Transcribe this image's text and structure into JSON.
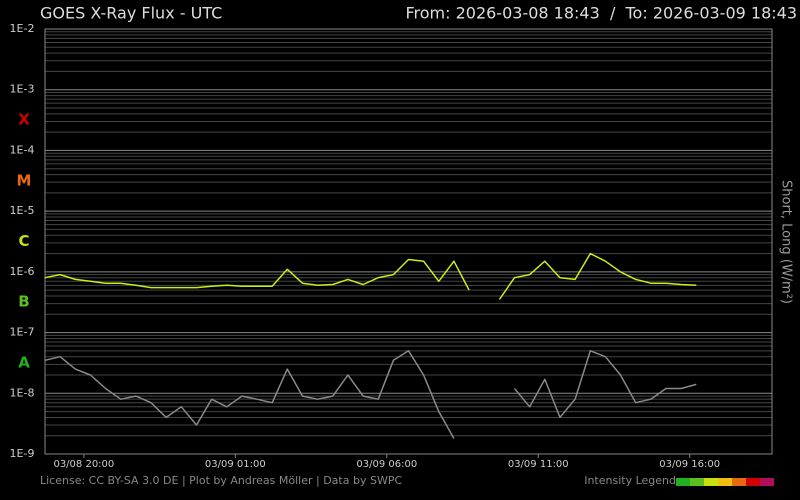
{
  "chart_data": {
    "type": "line",
    "title": "GOES X-Ray Flux - UTC",
    "subtitle": "From: 2026-03-08 18:43  /  To: 2026-03-09 18:43",
    "y_label": "Short, Long (W/m²)",
    "footer": "License: CC BY-SA 3.0 DE | Plot by Andreas Möller | Data by SWPC",
    "legend_label": "Intensity Legend",
    "log_y": true,
    "grid": true,
    "class_labels": [
      {
        "text": "X",
        "color": "#d00000"
      },
      {
        "text": "M",
        "color": "#e86a10"
      },
      {
        "text": "C",
        "color": "#c8e010"
      },
      {
        "text": "B",
        "color": "#5cc020"
      },
      {
        "text": "A",
        "color": "#20b020"
      }
    ],
    "xlim": [
      "03/08 18:43",
      "03/09 18:43"
    ],
    "xticks": [
      "03/08 20:00",
      "03/09 01:00",
      "03/09 06:00",
      "03/09 11:00",
      "03/09 16:00"
    ],
    "ylim": [
      1e-09,
      0.01
    ],
    "yticks": [
      {
        "value": 0.01,
        "label": "1E-2"
      },
      {
        "value": 0.001,
        "label": "1E-3"
      },
      {
        "value": 0.0001,
        "label": "1E-4"
      },
      {
        "value": 1e-05,
        "label": "1E-5"
      },
      {
        "value": 1e-06,
        "label": "1E-6"
      },
      {
        "value": 1e-07,
        "label": "1E-7"
      },
      {
        "value": 1e-08,
        "label": "1E-8"
      },
      {
        "value": 1e-09,
        "label": "1E-9"
      }
    ],
    "x": [
      "03/08 18:43",
      "03/08 19:13",
      "03/08 19:43",
      "03/08 20:13",
      "03/08 20:43",
      "03/08 21:13",
      "03/08 21:43",
      "03/08 22:13",
      "03/08 22:43",
      "03/08 23:13",
      "03/08 23:43",
      "03/09 00:13",
      "03/09 00:43",
      "03/09 01:13",
      "03/09 01:43",
      "03/09 02:13",
      "03/09 02:43",
      "03/09 03:13",
      "03/09 03:43",
      "03/09 04:13",
      "03/09 04:43",
      "03/09 05:13",
      "03/09 05:43",
      "03/09 06:13",
      "03/09 06:43",
      "03/09 07:13",
      "03/09 07:43",
      "03/09 08:13",
      "03/09 08:43",
      "03/09 09:13",
      "03/09 09:43",
      "03/09 10:13",
      "03/09 10:43",
      "03/09 11:13",
      "03/09 11:43",
      "03/09 12:13",
      "03/09 12:43",
      "03/09 13:13",
      "03/09 13:43",
      "03/09 14:13",
      "03/09 14:43",
      "03/09 15:13",
      "03/09 15:43",
      "03/09 16:13"
    ],
    "series": [
      {
        "color": "#c4f01c",
        "values": [
          8e-07,
          9e-07,
          7.5e-07,
          7e-07,
          6.5e-07,
          6.5e-07,
          6e-07,
          5.5e-07,
          5.5e-07,
          5.5e-07,
          5.5e-07,
          5.8e-07,
          6e-07,
          5.8e-07,
          5.8e-07,
          5.8e-07,
          1.1e-06,
          6.5e-07,
          6e-07,
          6.2e-07,
          7.5e-07,
          6.2e-07,
          8e-07,
          9e-07,
          1.6e-06,
          1.5e-06,
          7e-07,
          1.5e-06,
          5e-07,
          null,
          3.5e-07,
          8e-07,
          9e-07,
          1.5e-06,
          8e-07,
          7.5e-07,
          2e-06,
          1.5e-06,
          1e-06,
          7.5e-07,
          6.5e-07,
          6.5e-07,
          6.2e-07,
          6e-07
        ]
      },
      {
        "color": "#8a8a8a",
        "values": [
          3.5e-08,
          4e-08,
          2.5e-08,
          2e-08,
          1.2e-08,
          8e-09,
          9e-09,
          7e-09,
          4e-09,
          6e-09,
          3e-09,
          8e-09,
          6e-09,
          9e-09,
          8e-09,
          7e-09,
          2.5e-08,
          9e-09,
          8e-09,
          9e-09,
          2e-08,
          9e-09,
          8e-09,
          3.5e-08,
          5e-08,
          2e-08,
          5e-09,
          1.8e-09,
          null,
          null,
          null,
          1.2e-08,
          6e-09,
          1.7e-08,
          4e-09,
          8e-09,
          5e-08,
          4e-08,
          2e-08,
          7e-09,
          8e-09,
          1.2e-08,
          1.2e-08,
          1.4e-08
        ]
      }
    ]
  }
}
